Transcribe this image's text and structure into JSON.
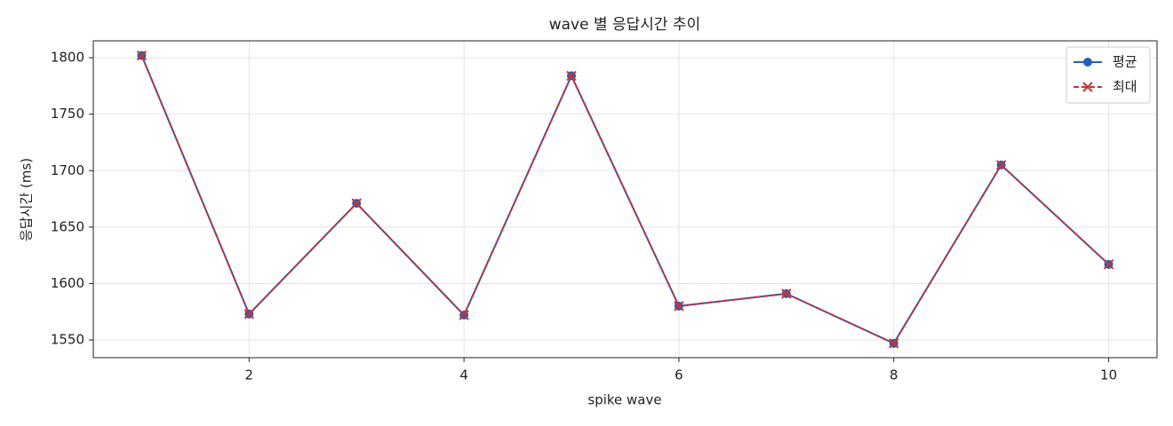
{
  "chart_data": {
    "type": "line",
    "title": "wave 별 응답시간 추이",
    "x_label": "spike wave",
    "y_label": "응답시간 (ms)",
    "x": [
      1,
      2,
      3,
      4,
      5,
      6,
      7,
      8,
      9,
      10
    ],
    "series": [
      {
        "name": "평균",
        "color": "#1f63b8",
        "marker": "o",
        "linestyle": "solid",
        "values": [
          1802,
          1573,
          1671,
          1572,
          1784,
          1580,
          1591,
          1547,
          1705,
          1617
        ]
      },
      {
        "name": "최대",
        "color": "#c8323a",
        "marker": "x",
        "linestyle": "dashed",
        "values": [
          1802,
          1573,
          1671,
          1572,
          1784,
          1580,
          1591,
          1547,
          1705,
          1617
        ]
      }
    ],
    "xlim": [
      0.55,
      10.45
    ],
    "xticks": [
      2,
      4,
      6,
      8,
      10
    ],
    "ylim": [
      1534.3,
      1815
    ],
    "yticks": [
      1550,
      1600,
      1650,
      1700,
      1750,
      1800
    ],
    "grid": true,
    "legend": "upper right"
  }
}
